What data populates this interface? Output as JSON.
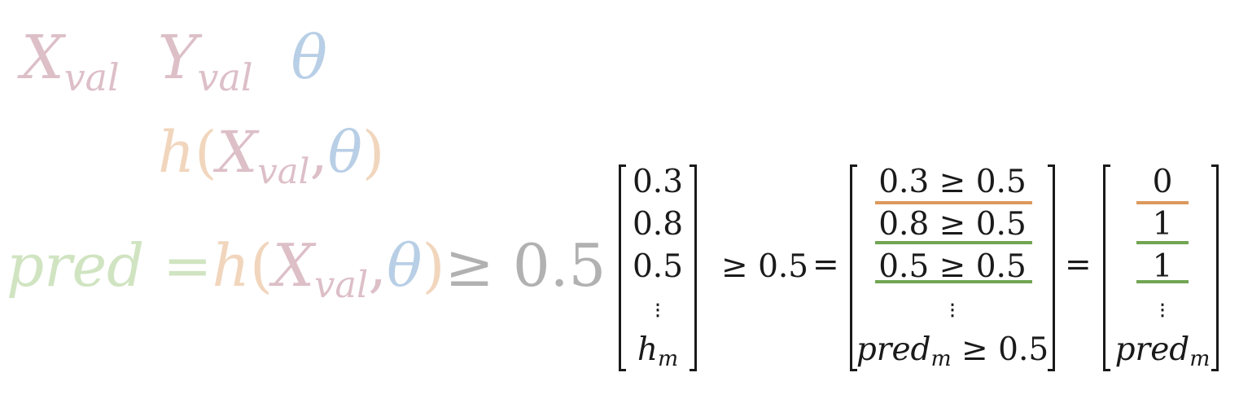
{
  "faded": {
    "line1": {
      "x": "X",
      "x_sub": "val",
      "y": "Y",
      "y_sub": "val",
      "theta": "θ"
    },
    "line2": {
      "h": "h",
      "open": "(",
      "x": "X",
      "x_sub": "val",
      "comma": ",",
      "theta": "θ",
      "close": ")"
    },
    "line3": {
      "pred": "pred",
      "eq": " =",
      "h": "h",
      "open": "(",
      "x": "X",
      "x_sub": "val",
      "comma": ",",
      "theta": "θ",
      "close": ")",
      "rel": "≥ 0.5"
    }
  },
  "matrix_h": [
    "0.3",
    "0.8",
    "0.5"
  ],
  "matrix_h_last": {
    "base": "h",
    "sub": "m"
  },
  "operator_ge": "≥ 0.5",
  "equals": "=",
  "matrix_cmp": [
    "0.3 ≥ 0.5",
    "0.8 ≥ 0.5",
    "0.5 ≥ 0.5"
  ],
  "matrix_cmp_last": {
    "base": "pred",
    "sub": "m",
    "rest": " ≥ 0.5"
  },
  "matrix_pred": [
    "0",
    "1",
    "1"
  ],
  "matrix_pred_last": {
    "base": "pred",
    "sub": "m"
  },
  "dots": "⋮",
  "colors": {
    "orange": "#dd995e",
    "green": "#72a553",
    "x_faded": "#ddbfc8",
    "theta_faded": "#b8cfe6",
    "h_faded": "#f1d6bd",
    "pred_faded": "#d0e4c1",
    "ink": "#1a1a1a"
  }
}
